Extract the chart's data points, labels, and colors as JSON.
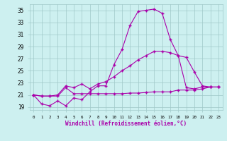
{
  "xlabel": "Windchill (Refroidissement éolien,°C)",
  "background_color": "#cdf0f0",
  "line_color": "#aa00aa",
  "grid_color": "#a0c8c8",
  "xlim": [
    -0.5,
    23.5
  ],
  "ylim": [
    18.5,
    36.0
  ],
  "yticks": [
    19,
    21,
    23,
    25,
    27,
    29,
    31,
    33,
    35
  ],
  "xticks": [
    0,
    1,
    2,
    3,
    4,
    5,
    6,
    7,
    8,
    9,
    10,
    11,
    12,
    13,
    14,
    15,
    16,
    17,
    18,
    19,
    20,
    21,
    22,
    23
  ],
  "line1_x": [
    0,
    1,
    2,
    3,
    4,
    5,
    6,
    7,
    8,
    9,
    10,
    11,
    12,
    13,
    14,
    15,
    16,
    17,
    18,
    19,
    20,
    21,
    22,
    23
  ],
  "line1_y": [
    21.0,
    19.5,
    19.2,
    20.0,
    19.2,
    20.5,
    20.2,
    21.5,
    22.5,
    22.5,
    26.0,
    28.5,
    32.5,
    34.8,
    35.0,
    35.2,
    34.5,
    30.2,
    27.5,
    22.2,
    22.0,
    22.3,
    22.3,
    22.3
  ],
  "line2_x": [
    0,
    1,
    2,
    3,
    4,
    5,
    6,
    7,
    8,
    9,
    10,
    11,
    12,
    13,
    14,
    15,
    16,
    17,
    18,
    19,
    20,
    21,
    22,
    23
  ],
  "line2_y": [
    21.0,
    20.8,
    20.8,
    21.0,
    22.5,
    22.2,
    22.8,
    22.0,
    22.8,
    23.2,
    24.0,
    25.0,
    25.8,
    26.8,
    27.5,
    28.2,
    28.2,
    28.0,
    27.5,
    27.2,
    24.8,
    22.5,
    22.3,
    22.3
  ],
  "line3_x": [
    0,
    1,
    2,
    3,
    4,
    5,
    6,
    7,
    8,
    9,
    10,
    11,
    12,
    13,
    14,
    15,
    16,
    17,
    18,
    19,
    20,
    21,
    22,
    23
  ],
  "line3_y": [
    21.0,
    20.8,
    20.8,
    20.8,
    22.2,
    21.2,
    21.2,
    21.2,
    21.2,
    21.2,
    21.2,
    21.2,
    21.3,
    21.3,
    21.4,
    21.5,
    21.5,
    21.5,
    21.8,
    21.8,
    21.8,
    22.0,
    22.3,
    22.3
  ]
}
